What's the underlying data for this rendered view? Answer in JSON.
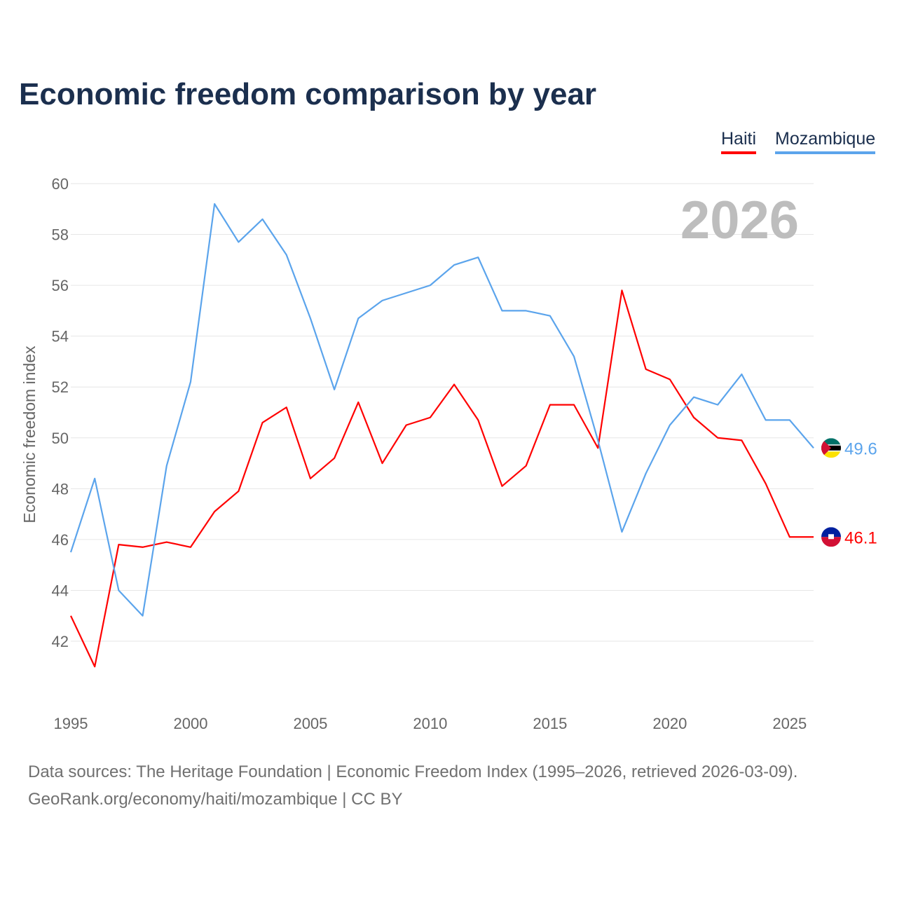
{
  "title": "Economic freedom comparison by year",
  "legend": [
    "Haiti",
    "Mozambique"
  ],
  "year_watermark": "2026",
  "sources": {
    "line1": "Data sources: The Heritage Foundation | Economic Freedom Index (1995–2026, retrieved 2026-03-09).",
    "line2": "GeoRank.org/economy/haiti/mozambique | CC BY"
  },
  "chart_data": {
    "type": "line",
    "title": "Economic freedom comparison by year",
    "xlabel": "",
    "ylabel": "Economic freedom index",
    "xlim": [
      1995,
      2026
    ],
    "ylim": [
      40,
      60
    ],
    "xticks": [
      1995,
      2000,
      2005,
      2010,
      2015,
      2020,
      2025
    ],
    "yticks": [
      42,
      44,
      46,
      48,
      50,
      52,
      54,
      56,
      58,
      60
    ],
    "grid": true,
    "legend_position": "top-right",
    "x": [
      1995,
      1996,
      1997,
      1998,
      1999,
      2000,
      2001,
      2002,
      2003,
      2004,
      2005,
      2006,
      2007,
      2008,
      2009,
      2010,
      2011,
      2012,
      2013,
      2014,
      2015,
      2016,
      2017,
      2018,
      2019,
      2020,
      2021,
      2022,
      2023,
      2024,
      2025,
      2026
    ],
    "series": [
      {
        "name": "Haiti",
        "color": "#ff0000",
        "end_label": "46.1",
        "values": [
          43.0,
          41.0,
          45.8,
          45.7,
          45.9,
          45.7,
          47.1,
          47.9,
          50.6,
          51.2,
          48.4,
          49.2,
          51.4,
          49.0,
          50.5,
          50.8,
          52.1,
          50.7,
          48.1,
          48.9,
          51.3,
          51.3,
          49.6,
          55.8,
          52.7,
          52.3,
          50.8,
          50.0,
          49.9,
          48.2,
          46.1,
          46.1
        ]
      },
      {
        "name": "Mozambique",
        "color": "#5ba4ec",
        "end_label": "49.6",
        "values": [
          45.5,
          48.4,
          44.0,
          43.0,
          48.9,
          52.2,
          59.2,
          57.7,
          58.6,
          57.2,
          54.7,
          51.9,
          54.7,
          55.4,
          55.7,
          56.0,
          56.8,
          57.1,
          55.0,
          55.0,
          54.8,
          53.2,
          49.9,
          46.3,
          48.6,
          50.5,
          51.6,
          51.3,
          52.5,
          50.7,
          50.7,
          49.6
        ]
      }
    ]
  }
}
